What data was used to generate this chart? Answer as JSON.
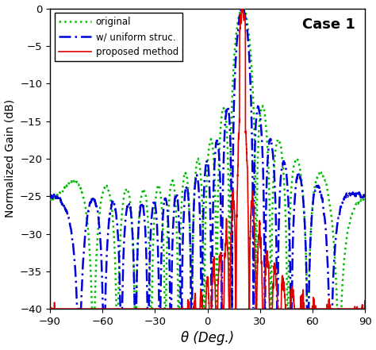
{
  "ylim": [
    -40,
    0
  ],
  "xlim": [
    -90,
    90
  ],
  "xticks": [
    -90,
    -60,
    -30,
    0,
    30,
    60,
    90
  ],
  "yticks": [
    0,
    -5,
    -10,
    -15,
    -20,
    -25,
    -30,
    -35,
    -40
  ],
  "xlabel": "θ (Deg.)",
  "ylabel": "Normalized Gain (dB)",
  "legend_labels": [
    "original",
    "w/ uniform struc.",
    "proposed method"
  ],
  "legend_colors": [
    "#00bb00",
    "#0000dd",
    "#dd0000"
  ],
  "annotation": "Case 1",
  "annotation_fontsize": 13,
  "figure_width": 4.74,
  "figure_height": 4.41,
  "dpi": 100
}
